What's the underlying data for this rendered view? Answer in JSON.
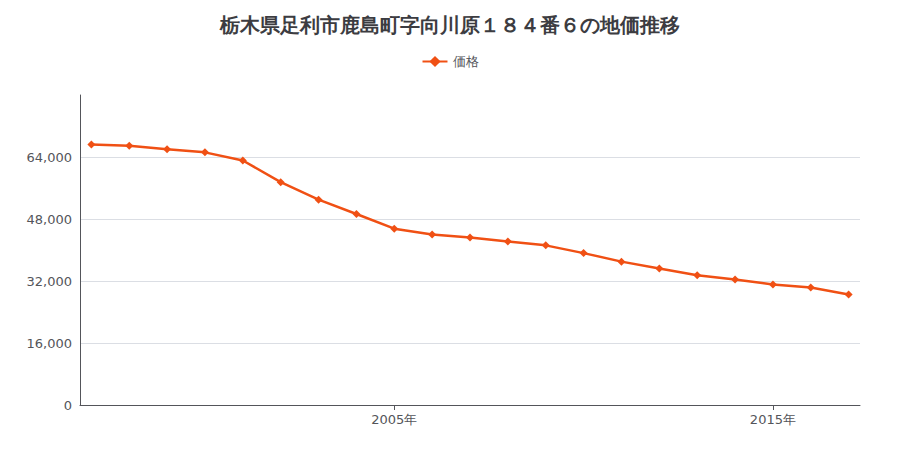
{
  "chart_data": {
    "type": "line",
    "title": "栃木県足利市鹿島町字向川原１８４番６の地価推移",
    "x": [
      1997,
      1998,
      1999,
      2000,
      2001,
      2002,
      2003,
      2004,
      2005,
      2006,
      2007,
      2008,
      2009,
      2010,
      2011,
      2012,
      2013,
      2014,
      2015,
      2016,
      2017
    ],
    "series": [
      {
        "name": "価格",
        "color": "#f05014",
        "marker": "diamond",
        "values": [
          67200,
          66900,
          66000,
          65200,
          63100,
          57500,
          53000,
          49300,
          45500,
          44000,
          43200,
          42200,
          41200,
          39200,
          37000,
          35200,
          33500,
          32400,
          31100,
          30300,
          28500
        ]
      }
    ],
    "xlim": [
      1996.7,
      2017.3
    ],
    "xticks": [
      {
        "value": 2005,
        "label": "2005年"
      },
      {
        "value": 2015,
        "label": "2015年"
      }
    ],
    "ylim": [
      0,
      80000
    ],
    "yticks": [
      0,
      {
        "value": 16000,
        "label": "16,000"
      },
      {
        "value": 32000,
        "label": "32,000"
      },
      {
        "value": 48000,
        "label": "48,000"
      },
      {
        "value": 64000,
        "label": "64,000"
      }
    ],
    "grid": "y",
    "legend": "top"
  }
}
